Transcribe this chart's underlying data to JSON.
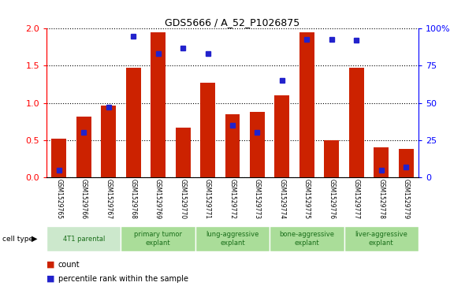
{
  "title": "GDS5666 / A_52_P1026875",
  "samples": [
    "GSM1529765",
    "GSM1529766",
    "GSM1529767",
    "GSM1529768",
    "GSM1529769",
    "GSM1529770",
    "GSM1529771",
    "GSM1529772",
    "GSM1529773",
    "GSM1529774",
    "GSM1529775",
    "GSM1529776",
    "GSM1529777",
    "GSM1529778",
    "GSM1529779"
  ],
  "counts": [
    0.52,
    0.82,
    0.97,
    1.47,
    1.95,
    0.67,
    1.27,
    0.85,
    0.88,
    1.1,
    1.95,
    0.5,
    1.47,
    0.4,
    0.38
  ],
  "percentile": [
    5,
    30,
    47,
    95,
    83,
    87,
    83,
    35,
    30,
    65,
    93,
    93,
    92,
    5,
    7
  ],
  "cell_types": [
    {
      "label": "4T1 parental",
      "start": 0,
      "end": 3
    },
    {
      "label": "primary tumor\nexplant",
      "start": 3,
      "end": 6
    },
    {
      "label": "lung-aggressive\nexplant",
      "start": 6,
      "end": 9
    },
    {
      "label": "bone-aggressive\nexplant",
      "start": 9,
      "end": 12
    },
    {
      "label": "liver-aggressive\nexplant",
      "start": 12,
      "end": 15
    }
  ],
  "ct_colors": [
    "#cce8cc",
    "#aadd99",
    "#aadd99",
    "#aadd99",
    "#aadd99"
  ],
  "bar_color": "#cc2200",
  "dot_color": "#2222cc",
  "ylim_left": [
    0,
    2
  ],
  "ylim_right": [
    0,
    100
  ],
  "yticks_left": [
    0,
    0.5,
    1.0,
    1.5,
    2.0
  ],
  "yticks_right": [
    0,
    25,
    50,
    75,
    100
  ],
  "bg_plot": "#ffffff",
  "bg_labels": "#cccccc"
}
